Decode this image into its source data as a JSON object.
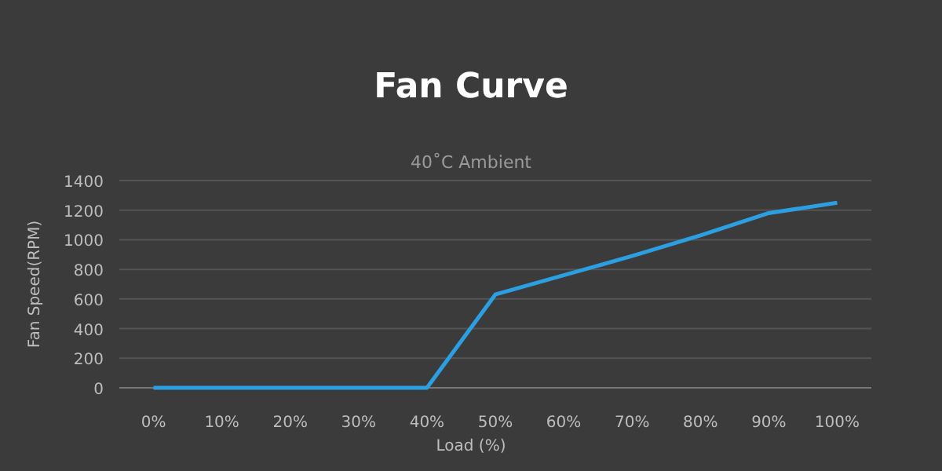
{
  "chart_data": {
    "type": "line",
    "title": "Fan Curve",
    "subtitle": "40˚C Ambient",
    "xlabel": "Load (%)",
    "ylabel": "Fan Speed(RPM)",
    "categories": [
      "0%",
      "10%",
      "20%",
      "30%",
      "40%",
      "50%",
      "60%",
      "70%",
      "80%",
      "90%",
      "100%"
    ],
    "series": [
      {
        "color": "#2c9fe2",
        "values": [
          0,
          0,
          0,
          0,
          0,
          630,
          760,
          890,
          1030,
          1180,
          1250
        ]
      }
    ],
    "ylim": [
      0,
      1400
    ],
    "yticks": [
      0,
      200,
      400,
      600,
      800,
      1000,
      1200,
      1400
    ],
    "grid": "y",
    "marker": "none",
    "line_style": "solid",
    "legend": false
  }
}
